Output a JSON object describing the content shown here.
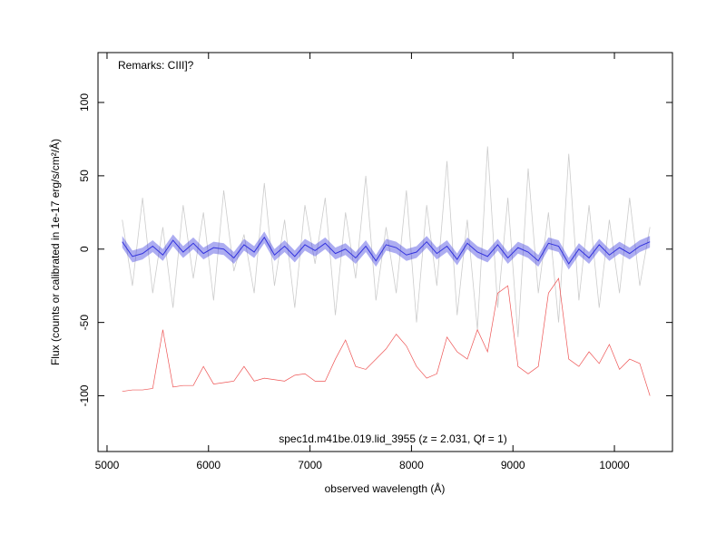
{
  "chart_data": {
    "type": "spectrum",
    "annotation": "Remarks: CIII]?",
    "caption": "spec1d.m41be.019.lid_3955 (z = 2.031, Qf = 1)",
    "xlabel": "observed wavelength (Å)",
    "ylabel": "Flux (counts or calibrated in 1e-17 erg/s/cm²/Å)",
    "xlim": [
      4911,
      10572
    ],
    "ylim": [
      -138,
      134
    ],
    "xticks": [
      5000,
      6000,
      7000,
      8000,
      9000,
      10000
    ],
    "yticks": [
      -100,
      -50,
      0,
      50,
      100
    ],
    "x": [
      5150,
      5250,
      5350,
      5450,
      5550,
      5650,
      5750,
      5850,
      5950,
      6050,
      6150,
      6250,
      6350,
      6450,
      6550,
      6650,
      6750,
      6850,
      6950,
      7050,
      7150,
      7250,
      7350,
      7450,
      7550,
      7650,
      7750,
      7850,
      7950,
      8050,
      8150,
      8250,
      8350,
      8450,
      8550,
      8650,
      8750,
      8850,
      8950,
      9050,
      9150,
      9250,
      9350,
      9450,
      9550,
      9650,
      9750,
      9850,
      9950,
      10050,
      10150,
      10250,
      10350
    ],
    "flux": [
      20,
      -25,
      35,
      -30,
      15,
      -40,
      30,
      -20,
      25,
      -35,
      40,
      -15,
      10,
      -30,
      45,
      -25,
      20,
      -40,
      30,
      -10,
      35,
      -45,
      25,
      -20,
      50,
      -35,
      15,
      -30,
      40,
      -50,
      30,
      -25,
      60,
      -45,
      20,
      -55,
      70,
      -40,
      35,
      -60,
      55,
      -30,
      25,
      -50,
      65,
      -35,
      30,
      -40,
      20,
      -30,
      35,
      -25,
      15
    ],
    "flux_color": "#cccccc",
    "smoothed": [
      5,
      -5,
      -3,
      2,
      -4,
      6,
      -2,
      4,
      -3,
      1,
      0,
      -6,
      3,
      -2,
      8,
      -4,
      2,
      -5,
      3,
      -1,
      4,
      -3,
      0,
      -6,
      2,
      -8,
      3,
      1,
      -4,
      -2,
      5,
      -3,
      2,
      -7,
      4,
      -2,
      -5,
      3,
      -6,
      1,
      -2,
      -8,
      4,
      2,
      -10,
      0,
      -6,
      3,
      -4,
      1,
      -3,
      2,
      5
    ],
    "smoothed_err": 4,
    "smoothed_color": "#3333dd",
    "sky": [
      -97,
      -96,
      -96,
      -95,
      -55,
      -94,
      -93,
      -93,
      -80,
      -92,
      -91,
      -90,
      -80,
      -90,
      -88,
      -89,
      -90,
      -86,
      -85,
      -90,
      -90,
      -75,
      -62,
      -80,
      -82,
      -75,
      -68,
      -58,
      -66,
      -80,
      -88,
      -85,
      -60,
      -70,
      -75,
      -55,
      -70,
      -30,
      -25,
      -80,
      -85,
      -80,
      -30,
      -20,
      -75,
      -80,
      -70,
      -78,
      -65,
      -82,
      -75,
      -78,
      -100
    ],
    "sky_color": "#ee5555"
  }
}
